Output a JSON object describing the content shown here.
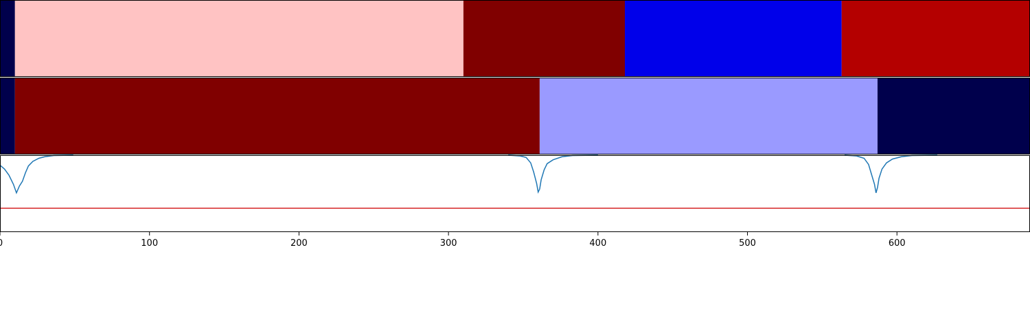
{
  "chart_data": [
    {
      "type": "heatmap",
      "panel": "segmentation-row-1",
      "x": {
        "min": 0,
        "max": 689
      },
      "segments": [
        {
          "start": 0,
          "end": 10,
          "color": "#00004c"
        },
        {
          "start": 10,
          "end": 310,
          "color": "#ffc3c3"
        },
        {
          "start": 310,
          "end": 418,
          "color": "#800000"
        },
        {
          "start": 418,
          "end": 563,
          "color": "#0000ea"
        },
        {
          "start": 563,
          "end": 689,
          "color": "#b40000"
        }
      ]
    },
    {
      "type": "heatmap",
      "panel": "segmentation-row-2",
      "x": {
        "min": 0,
        "max": 689
      },
      "segments": [
        {
          "start": 0,
          "end": 10,
          "color": "#00004c"
        },
        {
          "start": 10,
          "end": 361,
          "color": "#800000"
        },
        {
          "start": 361,
          "end": 587,
          "color": "#9a9aff"
        },
        {
          "start": 587,
          "end": 689,
          "color": "#00004c"
        }
      ]
    },
    {
      "type": "line",
      "panel": "score-curve",
      "x": {
        "min": 0,
        "max": 689
      },
      "ylim": [
        0,
        1
      ],
      "threshold": 0.31,
      "threshold_color": "#d62728",
      "line_color": "#1f77b4",
      "series": [
        {
          "points": [
            [
              0,
              0.87
            ],
            [
              3,
              0.82
            ],
            [
              6,
              0.74
            ],
            [
              9,
              0.62
            ],
            [
              11,
              0.51
            ],
            [
              13,
              0.6
            ],
            [
              15,
              0.66
            ],
            [
              17,
              0.77
            ],
            [
              19,
              0.86
            ],
            [
              22,
              0.92
            ],
            [
              26,
              0.96
            ],
            [
              30,
              0.98
            ],
            [
              36,
              0.995
            ],
            [
              49,
              1.0
            ],
            [
              340,
              1.0
            ],
            [
              348,
              0.99
            ],
            [
              352,
              0.97
            ],
            [
              355,
              0.9
            ],
            [
              357,
              0.78
            ],
            [
              359,
              0.63
            ],
            [
              360,
              0.52
            ],
            [
              361,
              0.56
            ],
            [
              362,
              0.68
            ],
            [
              364,
              0.81
            ],
            [
              366,
              0.89
            ],
            [
              370,
              0.94
            ],
            [
              376,
              0.98
            ],
            [
              383,
              0.995
            ],
            [
              400,
              1.0
            ],
            [
              565,
              1.0
            ],
            [
              573,
              0.99
            ],
            [
              578,
              0.96
            ],
            [
              581,
              0.88
            ],
            [
              583,
              0.75
            ],
            [
              585,
              0.62
            ],
            [
              586,
              0.51
            ],
            [
              587,
              0.58
            ],
            [
              588,
              0.7
            ],
            [
              590,
              0.82
            ],
            [
              593,
              0.9
            ],
            [
              597,
              0.95
            ],
            [
              603,
              0.98
            ],
            [
              610,
              0.995
            ],
            [
              627,
              1.0
            ]
          ]
        }
      ],
      "xticks": [
        0,
        100,
        200,
        300,
        400,
        500,
        600
      ]
    }
  ]
}
